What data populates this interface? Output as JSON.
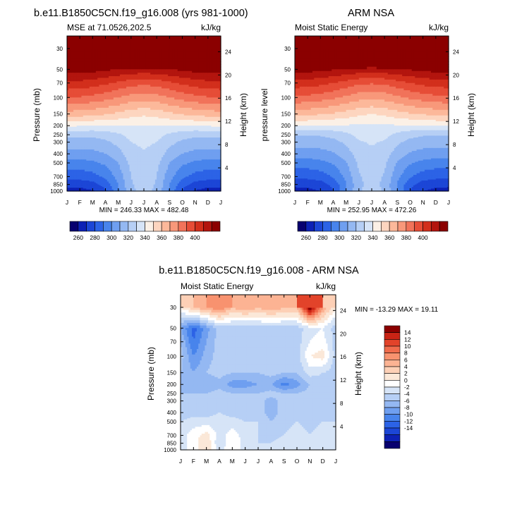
{
  "figure_title": "",
  "panels": {
    "model": {
      "title": "b.e11.B1850C5CN.f19_g16.008 (yrs 981-1000)",
      "left_label": "MSE at 71.0526,202.5",
      "units": "kJ/kg",
      "ylabel": "Pressure (mb)",
      "ylabel_right": "Height (km)",
      "minmax": "MIN = 246.33 MAX = 482.48"
    },
    "obs": {
      "title": "ARM NSA",
      "left_label": "Moist Static Energy",
      "units": "kJ/kg",
      "ylabel": "pressure level",
      "ylabel_right": "Height (km)",
      "minmax": "MIN = 252.95 MAX = 472.26"
    },
    "diff": {
      "title": "b.e11.B1850C5CN.f19_g16.008 - ARM NSA",
      "left_label": "Moist Static Energy",
      "units": "kJ/kg",
      "ylabel": "Pressure (mb)",
      "ylabel_right": "Height (km)",
      "minmax": "MIN = -13.29 MAX =  19.11"
    }
  },
  "colors": {
    "mse_scale": [
      "#08006f",
      "#0d21b5",
      "#1c46d6",
      "#2c63e6",
      "#4884ec",
      "#6f9ff0",
      "#94b8f2",
      "#b6cff5",
      "#d6e4f7",
      "#fbf0e6",
      "#fdd5bf",
      "#fcb89a",
      "#f8987a",
      "#f1735a",
      "#e64d37",
      "#d22f1c",
      "#b3150e",
      "#8b0000"
    ],
    "diff_scale": [
      "#08006f",
      "#0d21b5",
      "#1c46d6",
      "#2c63e6",
      "#4884ec",
      "#6f9ff0",
      "#94b8f2",
      "#b6cff5",
      "#d6e4f7",
      "#ffffff",
      "#fbe8d8",
      "#fdd0b6",
      "#fcb393",
      "#f8926f",
      "#f06b4c",
      "#e2432a",
      "#c92415",
      "#8b0000"
    ]
  },
  "chart_data": [
    {
      "type": "heatmap",
      "id": "model",
      "x_ticks": [
        "J",
        "F",
        "M",
        "A",
        "M",
        "J",
        "J",
        "A",
        "S",
        "O",
        "N",
        "D",
        "J"
      ],
      "y_ticks": [
        "30",
        "50",
        "70",
        "100",
        "150",
        "200",
        "250",
        "300",
        "400",
        "500",
        "700",
        "850",
        "1000"
      ],
      "y_tick_values": [
        30,
        50,
        70,
        100,
        150,
        200,
        250,
        300,
        400,
        500,
        700,
        850,
        1000
      ],
      "height_ticks": [
        "24",
        "20",
        "16",
        "12",
        "8",
        "4"
      ],
      "height_tick_values": [
        24,
        20,
        16,
        12,
        8,
        4
      ],
      "levels": [
        250,
        260,
        270,
        280,
        290,
        300,
        310,
        320,
        330,
        340,
        350,
        360,
        370,
        380,
        390,
        400,
        410
      ],
      "legend_labels": [
        "260",
        "280",
        "300",
        "320",
        "340",
        "360",
        "380",
        "400"
      ],
      "pressure": [
        30,
        50,
        70,
        100,
        150,
        200,
        250,
        300,
        400,
        500,
        700,
        850,
        1000
      ],
      "values": [
        [
          470,
          470,
          470,
          470,
          470,
          470,
          470,
          470,
          470,
          470,
          470,
          470,
          470
        ],
        [
          415,
          415,
          414,
          412,
          410,
          408,
          407,
          408,
          410,
          412,
          414,
          415,
          415
        ],
        [
          398,
          397,
          395,
          392,
          388,
          384,
          383,
          384,
          388,
          392,
          395,
          397,
          398
        ],
        [
          380,
          379,
          377,
          374,
          370,
          366,
          364,
          366,
          370,
          374,
          377,
          379,
          380
        ],
        [
          356,
          355,
          353,
          351,
          348,
          344,
          342,
          344,
          348,
          351,
          353,
          355,
          356
        ],
        [
          332,
          331,
          330,
          330,
          330,
          330,
          330,
          330,
          330,
          330,
          330,
          331,
          332
        ],
        [
          312,
          312,
          312,
          314,
          318,
          324,
          326,
          324,
          318,
          314,
          312,
          312,
          312
        ],
        [
          306,
          306,
          306,
          308,
          313,
          320,
          322,
          320,
          313,
          308,
          306,
          306,
          306
        ],
        [
          296,
          296,
          297,
          300,
          306,
          316,
          319,
          316,
          306,
          300,
          297,
          296,
          296
        ],
        [
          286,
          286,
          288,
          292,
          300,
          313,
          317,
          313,
          300,
          292,
          288,
          286,
          286
        ],
        [
          274,
          274,
          276,
          282,
          294,
          310,
          315,
          310,
          294,
          282,
          276,
          274,
          274
        ],
        [
          264,
          264,
          266,
          274,
          290,
          309,
          314,
          309,
          290,
          274,
          266,
          264,
          264
        ],
        [
          255,
          256,
          259,
          268,
          288,
          308,
          313,
          308,
          288,
          268,
          259,
          256,
          255
        ]
      ]
    },
    {
      "type": "heatmap",
      "id": "obs",
      "x_ticks": [
        "J",
        "F",
        "M",
        "A",
        "M",
        "J",
        "J",
        "A",
        "S",
        "O",
        "N",
        "D",
        "J"
      ],
      "y_ticks": [
        "30",
        "50",
        "70",
        "100",
        "150",
        "200",
        "250",
        "300",
        "400",
        "500",
        "700",
        "850",
        "1000"
      ],
      "y_tick_values": [
        30,
        50,
        70,
        100,
        150,
        200,
        250,
        300,
        400,
        500,
        700,
        850,
        1000
      ],
      "height_ticks": [
        "24",
        "20",
        "16",
        "12",
        "8",
        "4"
      ],
      "height_tick_values": [
        24,
        20,
        16,
        12,
        8,
        4
      ],
      "levels": [
        250,
        260,
        270,
        280,
        290,
        300,
        310,
        320,
        330,
        340,
        350,
        360,
        370,
        380,
        390,
        400,
        410
      ],
      "legend_labels": [
        "260",
        "280",
        "300",
        "320",
        "340",
        "360",
        "380",
        "400"
      ],
      "pressure": [
        30,
        50,
        70,
        100,
        150,
        200,
        250,
        300,
        400,
        500,
        700,
        850,
        1000
      ],
      "values": [
        [
          465,
          465,
          465,
          465,
          465,
          465,
          465,
          465,
          465,
          465,
          465,
          465,
          465
        ],
        [
          414,
          414,
          413,
          411,
          409,
          407,
          406,
          407,
          409,
          411,
          413,
          414,
          414
        ],
        [
          396,
          395,
          393,
          390,
          386,
          382,
          381,
          382,
          386,
          390,
          393,
          395,
          396
        ],
        [
          378,
          377,
          375,
          372,
          368,
          364,
          362,
          364,
          368,
          372,
          375,
          377,
          378
        ],
        [
          354,
          353,
          351,
          349,
          346,
          342,
          340,
          342,
          346,
          349,
          351,
          353,
          354
        ],
        [
          331,
          330,
          329,
          329,
          329,
          329,
          329,
          329,
          329,
          329,
          329,
          330,
          331
        ],
        [
          311,
          311,
          311,
          313,
          317,
          323,
          325,
          323,
          317,
          313,
          311,
          311,
          311
        ],
        [
          305,
          305,
          305,
          307,
          312,
          319,
          321,
          319,
          312,
          307,
          305,
          305,
          305
        ],
        [
          295,
          295,
          296,
          299,
          305,
          315,
          318,
          315,
          305,
          299,
          296,
          295,
          295
        ],
        [
          285,
          285,
          287,
          291,
          299,
          312,
          316,
          312,
          299,
          291,
          287,
          285,
          285
        ],
        [
          273,
          273,
          275,
          281,
          293,
          309,
          314,
          309,
          293,
          281,
          275,
          273,
          273
        ],
        [
          263,
          263,
          265,
          273,
          289,
          308,
          313,
          308,
          289,
          273,
          265,
          263,
          263
        ],
        [
          256,
          257,
          260,
          269,
          289,
          309,
          314,
          309,
          289,
          269,
          260,
          257,
          256
        ]
      ]
    },
    {
      "type": "heatmap",
      "id": "diff",
      "x_ticks": [
        "J",
        "F",
        "M",
        "A",
        "M",
        "J",
        "J",
        "A",
        "S",
        "O",
        "N",
        "D",
        "J"
      ],
      "y_ticks": [
        "30",
        "50",
        "70",
        "100",
        "150",
        "200",
        "250",
        "300",
        "400",
        "500",
        "700",
        "850",
        "1000"
      ],
      "y_tick_values": [
        30,
        50,
        70,
        100,
        150,
        200,
        250,
        300,
        400,
        500,
        700,
        850,
        1000
      ],
      "height_ticks": [
        "24",
        "20",
        "16",
        "12",
        "8",
        "4"
      ],
      "height_tick_values": [
        24,
        20,
        16,
        12,
        8,
        4
      ],
      "levels": [
        -16,
        -14,
        -12,
        -10,
        -8,
        -6,
        -4,
        -2,
        0,
        2,
        4,
        6,
        8,
        10,
        12,
        14,
        16
      ],
      "legend_labels": [
        "14",
        "12",
        "10",
        "8",
        "6",
        "4",
        "2",
        "0",
        "-2",
        "-4",
        "-6",
        "-8",
        "-10",
        "-12",
        "-14"
      ],
      "pressure": [
        30,
        50,
        70,
        100,
        150,
        200,
        250,
        300,
        400,
        500,
        700,
        850,
        1000
      ],
      "values": [
        [
          2,
          6,
          8,
          10,
          6,
          8,
          6,
          8,
          6,
          6,
          19,
          8,
          2
        ],
        [
          -6,
          -11,
          -7,
          -3,
          -3,
          -4,
          -3,
          -3,
          -3,
          -3,
          -1,
          0,
          -3
        ],
        [
          -4,
          -10,
          -6,
          -3,
          -3,
          -3,
          -3,
          -3,
          -3,
          -3,
          0,
          1,
          -3
        ],
        [
          -3,
          -8,
          -5,
          -3,
          -3,
          -3,
          -3,
          -3,
          -3,
          -3,
          2,
          3,
          -3
        ],
        [
          -4,
          -6,
          -4,
          -3,
          -4,
          -4,
          -4,
          -3,
          -4,
          -4,
          -1,
          -2,
          -3
        ],
        [
          -5,
          -6,
          -6,
          -5,
          -7,
          -7,
          -6,
          -6,
          -9,
          -7,
          -4,
          -3,
          -3
        ],
        [
          -4,
          -4,
          -4,
          -3,
          -4,
          -4,
          -4,
          -3,
          -4,
          -4,
          -3,
          -3,
          -3
        ],
        [
          -3,
          -3,
          -3,
          -2,
          -3,
          -3,
          -3,
          -5,
          -3,
          -3,
          -3,
          -3,
          -3
        ],
        [
          -3,
          -3,
          -3,
          -2,
          -3,
          -3,
          -3,
          -5,
          -3,
          -3,
          -3,
          -3,
          -3
        ],
        [
          -2,
          -1,
          -1,
          -1,
          -1,
          -2,
          -2,
          -4,
          -3,
          -2,
          -3,
          -2,
          -2
        ],
        [
          -1,
          1,
          3,
          -1,
          1,
          -1,
          -2,
          -3,
          -2,
          -1,
          -2,
          -1,
          -2
        ],
        [
          -1,
          1,
          4,
          -2,
          2,
          -1,
          -2,
          -2,
          -1,
          0,
          -1,
          -1,
          -1
        ],
        [
          -1,
          1,
          4,
          -1,
          2,
          -1,
          -1,
          -2,
          -1,
          0,
          -1,
          -1,
          -1
        ]
      ]
    }
  ]
}
